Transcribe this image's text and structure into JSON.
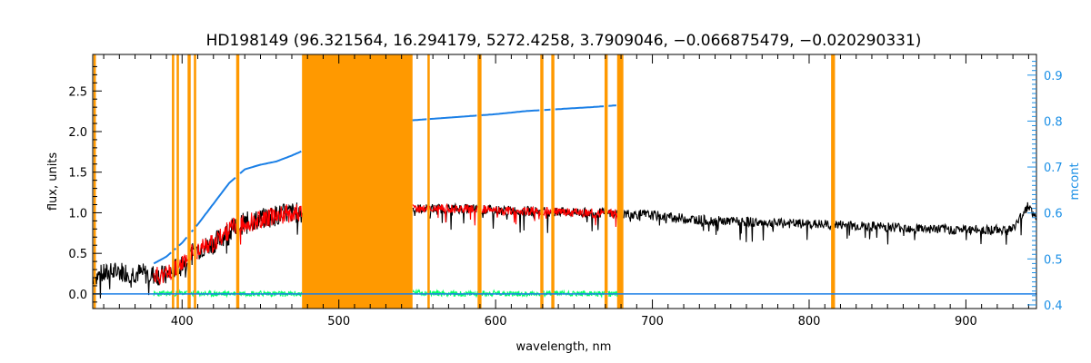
{
  "chart_data": {
    "type": "line",
    "title": "HD198149    (96.321564, 16.294179, 5272.4258, 3.7909046, −0.066875479, −0.020290331)",
    "xlabel": "wavelength, nm",
    "ylabel": "flux, units",
    "y2label": "mcont",
    "xlim": [
      343,
      945
    ],
    "ylim": [
      -0.18,
      2.95
    ],
    "y2lim": [
      0.392,
      0.945
    ],
    "xticks": [
      400,
      500,
      600,
      700,
      800,
      900
    ],
    "yticks": [
      0.0,
      0.5,
      1.0,
      1.5,
      2.0,
      2.5
    ],
    "yticklabels": [
      "0.0",
      "0.5",
      "1.0",
      "1.5",
      "2.0",
      "2.5"
    ],
    "y2ticks": [
      0.4,
      0.5,
      0.6,
      0.7,
      0.8,
      0.9
    ],
    "y2ticklabels": [
      "0.4",
      "0.5",
      "0.6",
      "0.7",
      "0.8",
      "0.9"
    ],
    "colors": {
      "observed": "#000000",
      "model": "#ff0000",
      "residual": "#00ff66",
      "mcont": "#1a7fe6",
      "mask": "#ff9900",
      "axis": "#000000",
      "right_axis": "#1a8fe6"
    },
    "masked_bands": [
      [
        343.5,
        345.0
      ],
      [
        393.5,
        395.0
      ],
      [
        396.5,
        398.0
      ],
      [
        403.5,
        405.5
      ],
      [
        407.5,
        409.0
      ],
      [
        434.5,
        436.5
      ],
      [
        476.5,
        547.0
      ],
      [
        556.5,
        558.0
      ],
      [
        588.5,
        591.0
      ],
      [
        628.5,
        630.5
      ],
      [
        635.5,
        637.5
      ],
      [
        669.5,
        671.5
      ],
      [
        677.5,
        681.5
      ],
      [
        814.0,
        816.5
      ]
    ],
    "series": [
      {
        "x": [
          343,
          350,
          360,
          370,
          380,
          390,
          400,
          410,
          420,
          430,
          440,
          450,
          460,
          470,
          477,
          547,
          560,
          580,
          600,
          620,
          640,
          660,
          680,
          700,
          720,
          740,
          760,
          780,
          800,
          820,
          840,
          860,
          880,
          900,
          920,
          930,
          940,
          945
        ],
        "y": [
          0.22,
          0.24,
          0.28,
          0.26,
          0.24,
          0.22,
          0.38,
          0.55,
          0.62,
          0.78,
          0.88,
          0.92,
          0.97,
          1.0,
          1.0,
          1.05,
          1.05,
          1.05,
          1.03,
          1.02,
          1.01,
          1.0,
          0.99,
          0.97,
          0.93,
          0.9,
          0.89,
          0.87,
          0.86,
          0.85,
          0.83,
          0.82,
          0.8,
          0.79,
          0.79,
          0.8,
          1.1,
          0.9
        ]
      },
      {
        "x": [
          382,
          390,
          400,
          410,
          420,
          430,
          440,
          450,
          460,
          470,
          477,
          547,
          560,
          580,
          600,
          620,
          640,
          660,
          680
        ],
        "y": [
          0.22,
          0.24,
          0.4,
          0.56,
          0.63,
          0.79,
          0.88,
          0.92,
          0.97,
          1.0,
          1.0,
          1.05,
          1.05,
          1.05,
          1.03,
          1.02,
          1.01,
          1.0,
          0.99
        ]
      },
      {
        "x": [
          382,
          400,
          420,
          440,
          460,
          477,
          547,
          560,
          580,
          600,
          620,
          640,
          660,
          680
        ],
        "y": [
          0.0,
          0.01,
          0.0,
          0.01,
          0.0,
          0.0,
          0.02,
          0.01,
          0.0,
          0.01,
          0.0,
          0.01,
          0.0,
          0.0
        ]
      },
      {
        "x": [
          382,
          390,
          400,
          410,
          420,
          430,
          440,
          450,
          460,
          470,
          480,
          500,
          520,
          540,
          560,
          580,
          600,
          620,
          640,
          660,
          680
        ],
        "y": [
          0.49,
          0.505,
          0.535,
          0.575,
          0.62,
          0.665,
          0.695,
          0.705,
          0.712,
          0.725,
          0.74,
          0.77,
          0.79,
          0.8,
          0.805,
          0.81,
          0.815,
          0.822,
          0.826,
          0.83,
          0.835
        ]
      },
      {
        "x": [
          343,
          945
        ],
        "y": [
          0.0,
          0.0
        ]
      }
    ]
  }
}
